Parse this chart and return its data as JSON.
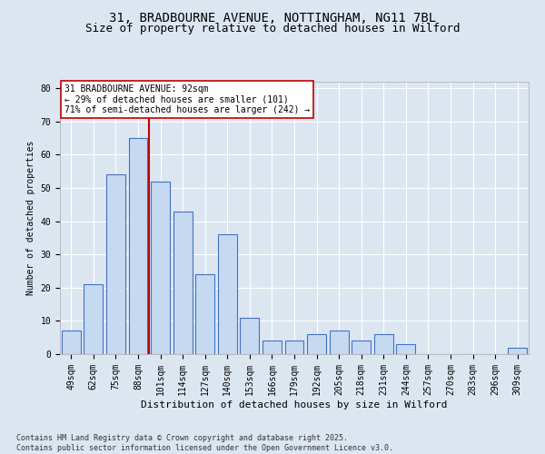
{
  "title1": "31, BRADBOURNE AVENUE, NOTTINGHAM, NG11 7BL",
  "title2": "Size of property relative to detached houses in Wilford",
  "xlabel": "Distribution of detached houses by size in Wilford",
  "ylabel": "Number of detached properties",
  "categories": [
    "49sqm",
    "62sqm",
    "75sqm",
    "88sqm",
    "101sqm",
    "114sqm",
    "127sqm",
    "140sqm",
    "153sqm",
    "166sqm",
    "179sqm",
    "192sqm",
    "205sqm",
    "218sqm",
    "231sqm",
    "244sqm",
    "257sqm",
    "270sqm",
    "283sqm",
    "296sqm",
    "309sqm"
  ],
  "values": [
    7,
    21,
    54,
    65,
    52,
    43,
    24,
    36,
    11,
    4,
    4,
    6,
    7,
    4,
    6,
    3,
    0,
    0,
    0,
    0,
    2
  ],
  "bar_color": "#c5d9f1",
  "bar_edge_color": "#4472c4",
  "vline_x": 3.5,
  "vline_color": "#c00000",
  "annotation_text": "31 BRADBOURNE AVENUE: 92sqm\n← 29% of detached houses are smaller (101)\n71% of semi-detached houses are larger (242) →",
  "annotation_box_color": "#ffffff",
  "annotation_box_edge": "#c00000",
  "ylim": [
    0,
    82
  ],
  "yticks": [
    0,
    10,
    20,
    30,
    40,
    50,
    60,
    70,
    80
  ],
  "footer": "Contains HM Land Registry data © Crown copyright and database right 2025.\nContains public sector information licensed under the Open Government Licence v3.0.",
  "bg_color": "#dce6f1",
  "plot_bg": "#dce6f1",
  "grid_color": "#ffffff",
  "title_fontsize": 10,
  "subtitle_fontsize": 9,
  "annotation_fontsize": 7,
  "axis_fontsize": 7,
  "ylabel_fontsize": 7,
  "xlabel_fontsize": 8,
  "footer_fontsize": 6
}
